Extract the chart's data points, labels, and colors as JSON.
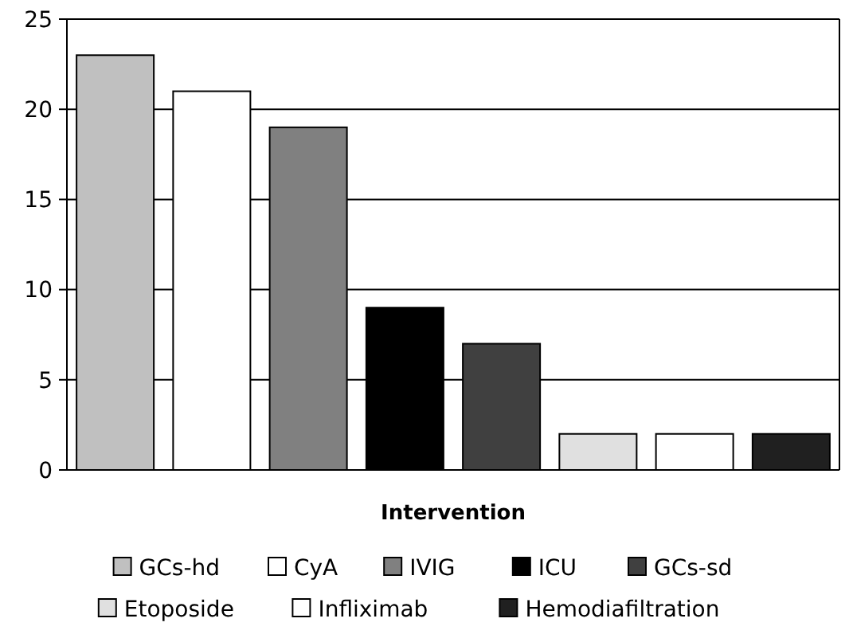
{
  "chart_data": {
    "type": "bar",
    "xlabel": "Intervention",
    "categories": [
      null,
      null,
      null,
      null,
      null,
      null,
      null,
      null
    ],
    "series": [
      {
        "name": "GCs-hd",
        "color": "#c0c0c0",
        "values": [
          23,
          null,
          null,
          null,
          null,
          null,
          null,
          null
        ]
      },
      {
        "name": "CyA",
        "color": "#ffffff",
        "values": [
          null,
          21,
          null,
          null,
          null,
          null,
          null,
          null
        ]
      },
      {
        "name": "IVIG",
        "color": "#808080",
        "values": [
          null,
          null,
          19,
          null,
          null,
          null,
          null,
          null
        ]
      },
      {
        "name": "ICU",
        "color": "#000000",
        "values": [
          null,
          null,
          null,
          9,
          null,
          null,
          null,
          null
        ]
      },
      {
        "name": "GCs-sd",
        "color": "#404040",
        "values": [
          null,
          null,
          null,
          null,
          7,
          null,
          null,
          null
        ]
      },
      {
        "name": "Etoposide",
        "color": "#e0e0e0",
        "values": [
          null,
          null,
          null,
          null,
          null,
          2,
          null,
          null
        ]
      },
      {
        "name": "Infliximab",
        "color": "#ffffff",
        "values": [
          null,
          null,
          null,
          null,
          null,
          null,
          2,
          null
        ]
      },
      {
        "name": "Hemodiafiltration",
        "color": "#202020",
        "values": [
          null,
          null,
          null,
          null,
          null,
          null,
          null,
          2
        ]
      }
    ],
    "ylim": [
      0,
      25
    ],
    "yticks": [
      0,
      5,
      10,
      15,
      20,
      25
    ],
    "grid": "y",
    "legend": "bottom"
  }
}
